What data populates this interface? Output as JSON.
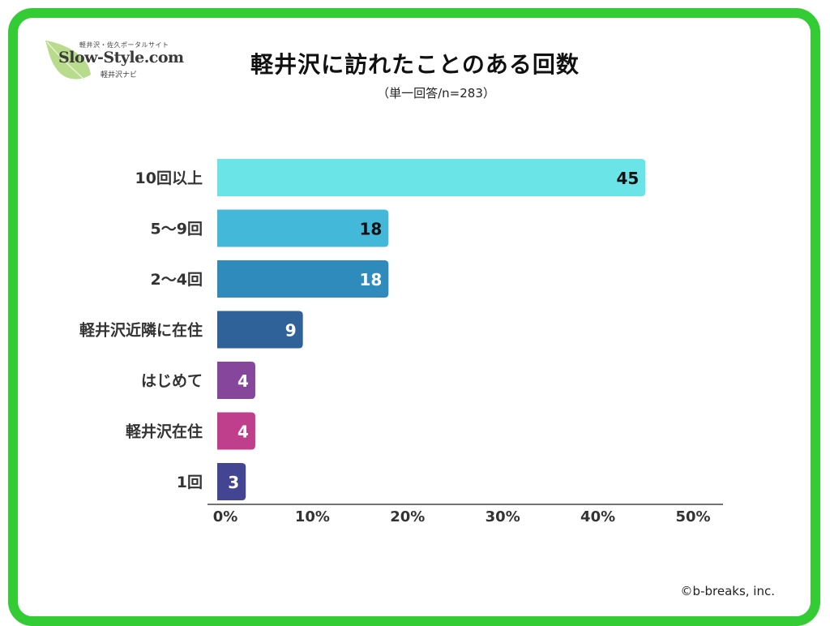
{
  "logo": {
    "tagline": "軽井沢・佐久ポータルサイト",
    "brand": "Slow-Style.com",
    "subtitle": "軽井沢ナビ"
  },
  "colors": {
    "frame": "#34cc34",
    "leaf": "#b9db8c"
  },
  "chart_data": {
    "type": "bar",
    "orientation": "horizontal",
    "title": "軽井沢に訪れたことのある回数",
    "subtitle": "（単一回答/n=283）",
    "xlabel": "",
    "ylabel": "",
    "xlim": [
      0,
      50
    ],
    "x_ticks": [
      "0%",
      "10%",
      "20%",
      "30%",
      "40%",
      "50%"
    ],
    "x_tick_values": [
      0,
      10,
      20,
      30,
      40,
      50
    ],
    "grid": false,
    "legend": "none",
    "categories": [
      "10回以上",
      "5〜9回",
      "2〜4回",
      "軽井沢近隣に在住",
      "はじめて",
      "軽井沢在住",
      "1回"
    ],
    "values": [
      45,
      18,
      18,
      9,
      4,
      4,
      3
    ],
    "data_labels": [
      "45",
      "18",
      "18",
      "9",
      "4",
      "4",
      "3"
    ],
    "bar_colors": [
      "#6be4e8",
      "#43b8d8",
      "#2e8bbc",
      "#2e6299",
      "#86469b",
      "#bf3f8c",
      "#434593"
    ],
    "label_colors": [
      "#111111",
      "#111111",
      "#ffffff",
      "#ffffff",
      "#ffffff",
      "#ffffff",
      "#ffffff"
    ]
  },
  "footer": {
    "copyright": "©b-breaks, inc."
  }
}
